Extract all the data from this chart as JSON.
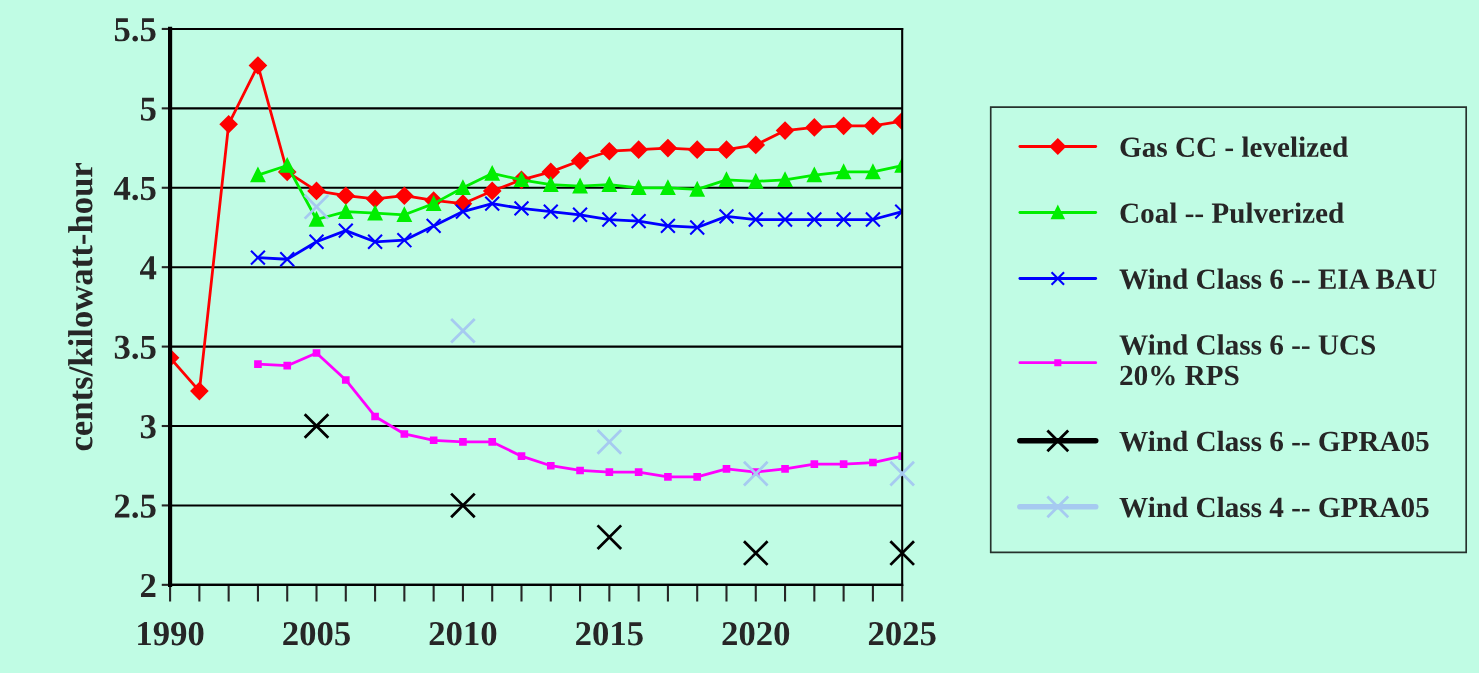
{
  "chart_data": {
    "type": "line",
    "ylabel": "cents/kilowatt-hour",
    "categories": [
      "1990",
      null,
      null,
      null,
      null,
      "2005",
      null,
      null,
      null,
      null,
      "2010",
      null,
      null,
      null,
      null,
      "2015",
      null,
      null,
      null,
      null,
      "2020",
      null,
      null,
      null,
      null,
      "2025"
    ],
    "ylim": [
      2,
      5.5
    ],
    "yticks": [
      2,
      2.5,
      3,
      3.5,
      4,
      4.5,
      5,
      5.5
    ],
    "grid": "y",
    "legend": "right",
    "series": [
      {
        "name": "Gas CC - levelized",
        "color": "#ff0000",
        "marker": "diamond",
        "values": [
          3.43,
          3.22,
          4.9,
          5.27,
          4.6,
          4.48,
          4.45,
          4.43,
          4.45,
          4.42,
          4.4,
          4.48,
          4.55,
          4.6,
          4.67,
          4.73,
          4.74,
          4.75,
          4.74,
          4.74,
          4.77,
          4.86,
          4.88,
          4.89,
          4.89,
          4.92
        ]
      },
      {
        "name": "Coal -- Pulverized",
        "color": "#00ee00",
        "marker": "triangle",
        "values": [
          null,
          null,
          null,
          4.58,
          4.64,
          4.3,
          4.35,
          4.34,
          4.33,
          4.4,
          4.5,
          4.59,
          4.55,
          4.52,
          4.51,
          4.52,
          4.5,
          4.5,
          4.49,
          4.55,
          4.54,
          4.55,
          4.58,
          4.6,
          4.6,
          4.64
        ]
      },
      {
        "name": "Wind Class 6 -- EIA BAU",
        "color": "#0000ff",
        "marker": "cross",
        "values": [
          null,
          null,
          null,
          4.06,
          4.05,
          4.16,
          4.23,
          4.16,
          4.17,
          4.26,
          4.35,
          4.4,
          4.37,
          4.35,
          4.33,
          4.3,
          4.29,
          4.26,
          4.25,
          4.32,
          4.3,
          4.3,
          4.3,
          4.3,
          4.3,
          4.35
        ]
      },
      {
        "name": "Wind Class 6 -- UCS\n20% RPS",
        "color": "#ff00ff",
        "marker": "square",
        "values": [
          null,
          null,
          null,
          3.39,
          3.38,
          3.46,
          3.29,
          3.06,
          2.95,
          2.91,
          2.9,
          2.9,
          2.81,
          2.75,
          2.72,
          2.71,
          2.71,
          2.68,
          2.68,
          2.73,
          2.71,
          2.73,
          2.76,
          2.76,
          2.77,
          2.81
        ]
      },
      {
        "name": "Wind Class 6 -- GPRA05",
        "color": "#000000",
        "type": "scatter",
        "marker": "cross",
        "values": [
          null,
          null,
          null,
          null,
          null,
          3.0,
          null,
          null,
          null,
          null,
          2.5,
          null,
          null,
          null,
          null,
          2.3,
          null,
          null,
          null,
          null,
          2.2,
          null,
          null,
          null,
          null,
          2.2
        ]
      },
      {
        "name": "Wind Class 4 -- GPRA05",
        "color": "#a6caf0",
        "type": "scatter",
        "marker": "cross",
        "values": [
          null,
          null,
          null,
          null,
          null,
          4.38,
          null,
          null,
          null,
          null,
          3.6,
          null,
          null,
          null,
          null,
          2.9,
          null,
          null,
          null,
          null,
          2.7,
          null,
          null,
          null,
          null,
          2.7
        ]
      }
    ]
  }
}
